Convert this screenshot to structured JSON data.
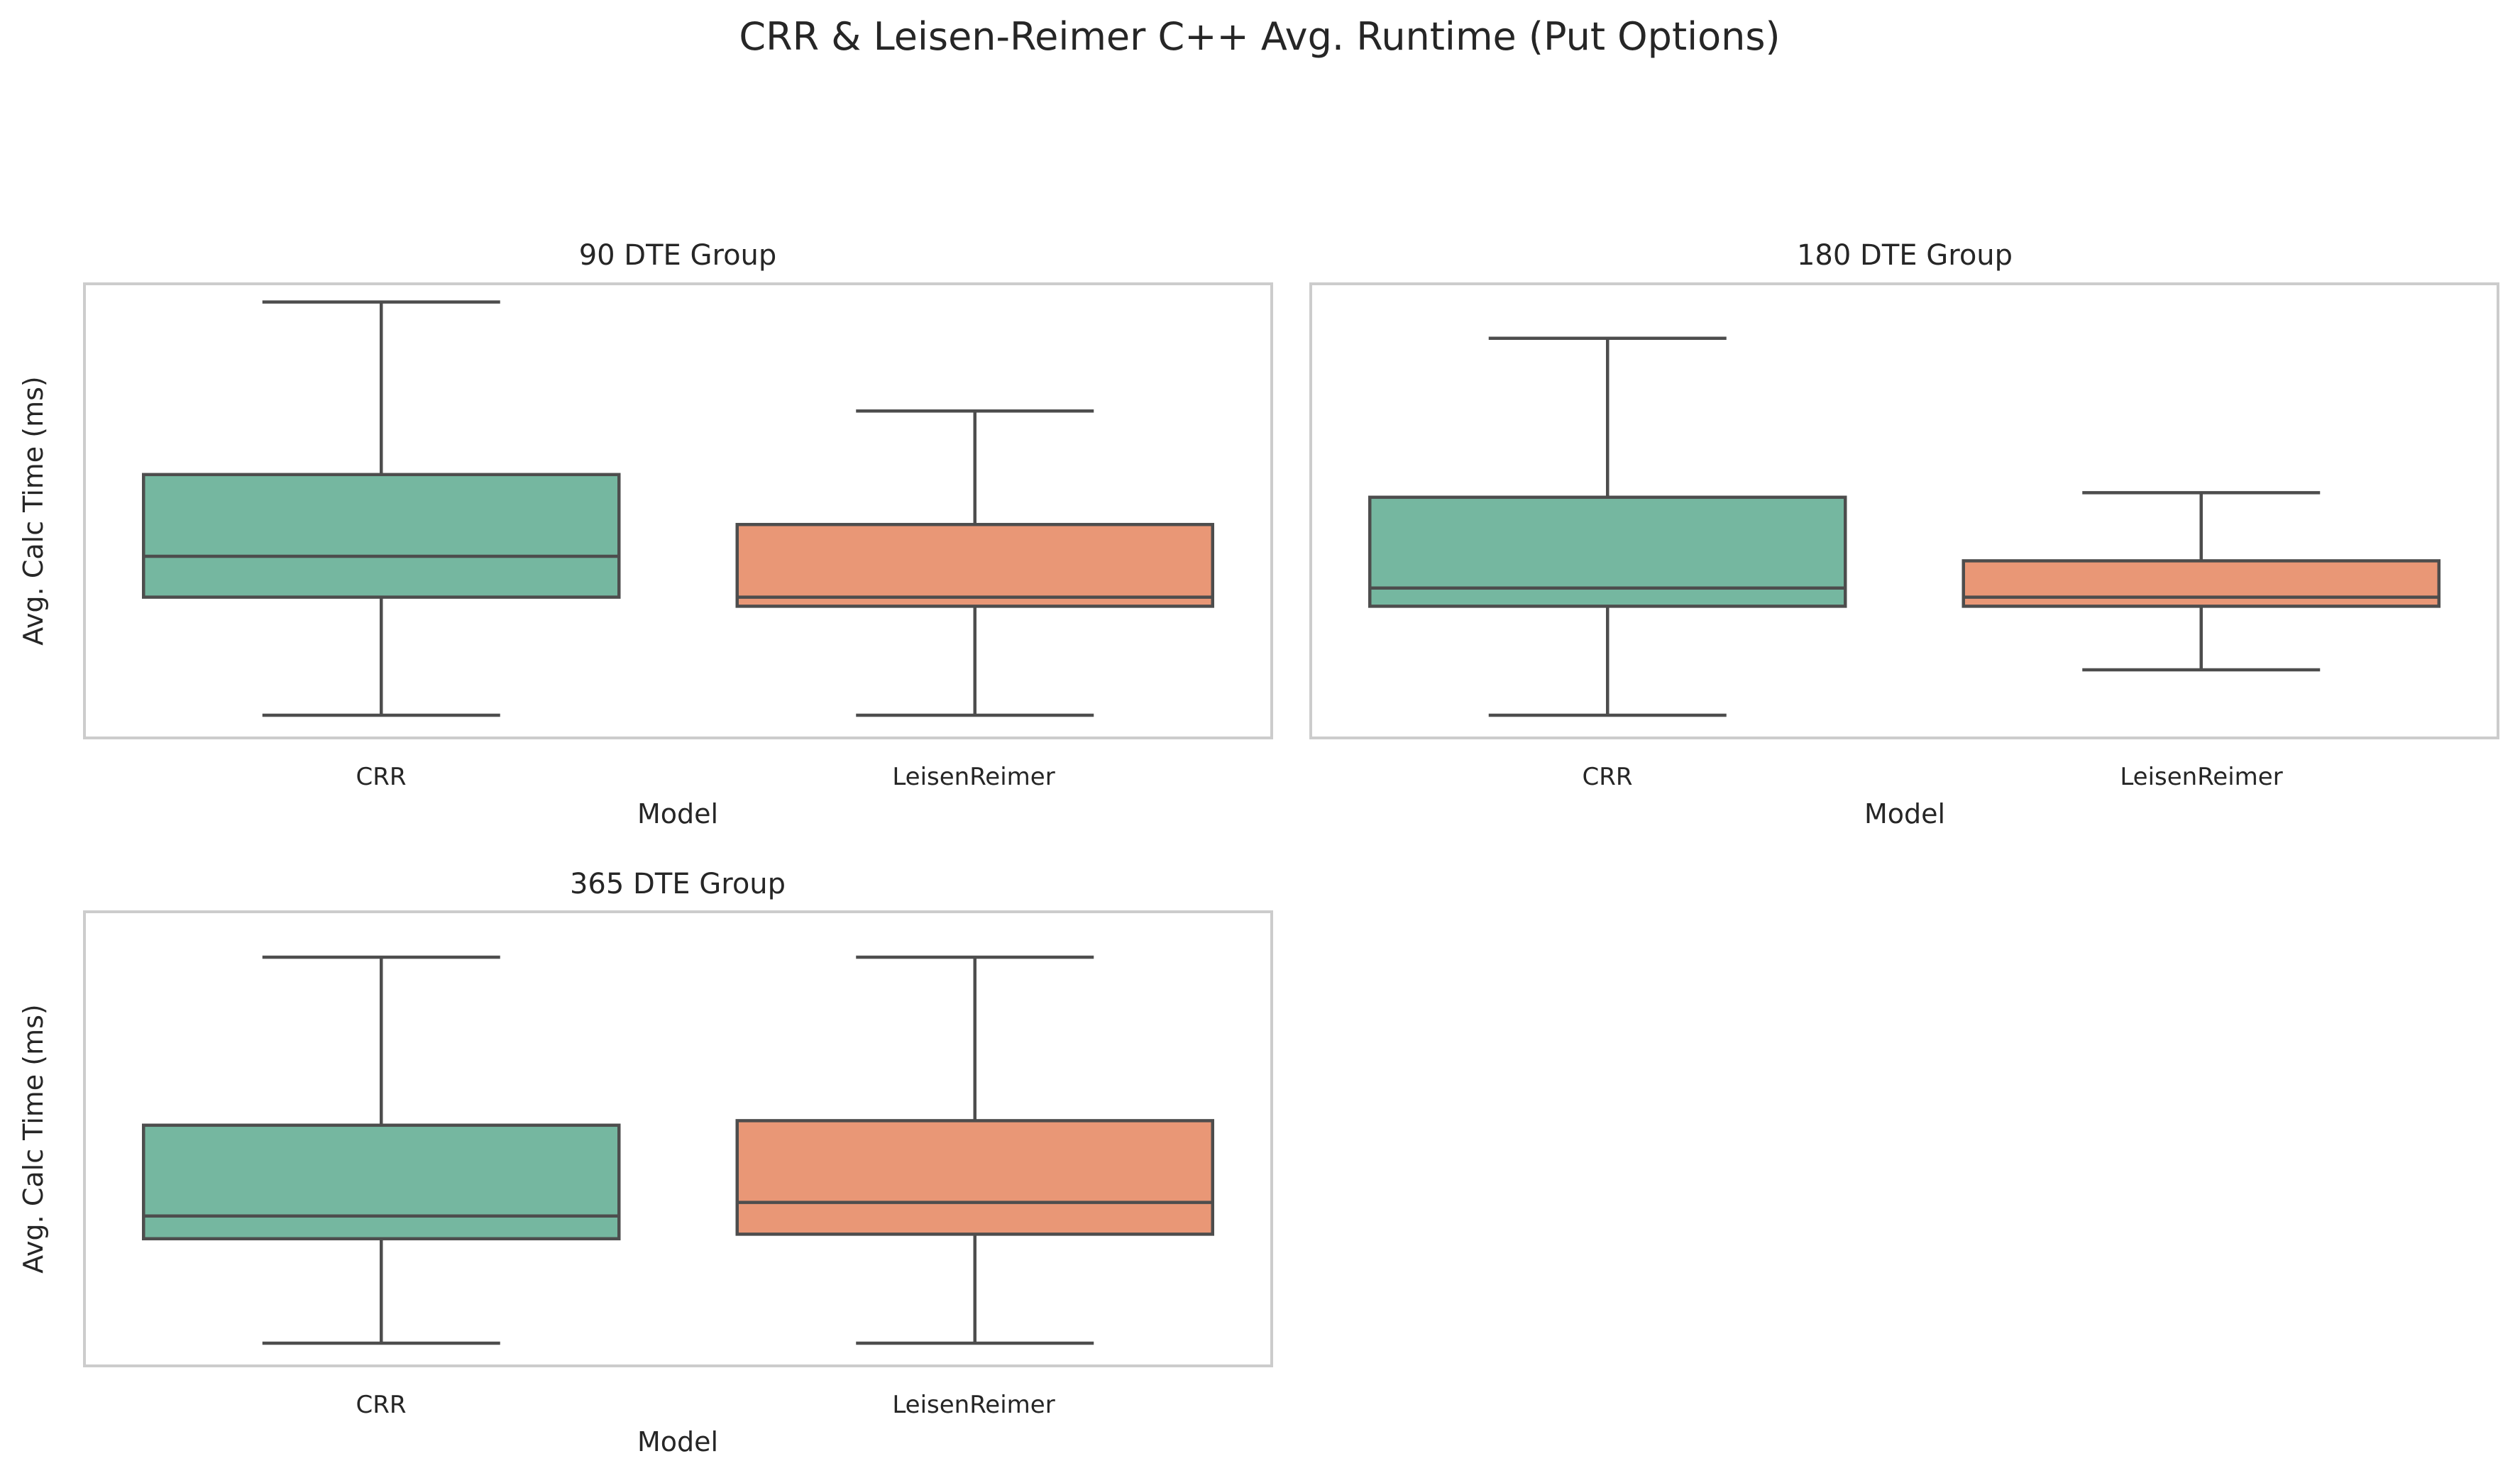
{
  "figure": {
    "title": "CRR & Leisen-Reimer C++ Avg. Runtime (Put Options)"
  },
  "colors": {
    "CRR": "#75b7a0",
    "LeisenReimer": "#e99776",
    "line": "#4d4d4d",
    "frame": "#cccccc"
  },
  "chart_data": [
    {
      "type": "box",
      "title": "90 DTE Group",
      "xlabel": "Model",
      "ylabel": "Avg. Calc Time (ms)",
      "categories": [
        "CRR",
        "LeisenReimer"
      ],
      "ylim": [
        0,
        1
      ],
      "y_ticks_shown": false,
      "grid": false,
      "boxes": [
        {
          "name": "CRR",
          "whisker_low": 0.05,
          "q1": 0.31,
          "median": 0.4,
          "q3": 0.58,
          "whisker_high": 0.96
        },
        {
          "name": "LeisenReimer",
          "whisker_low": 0.05,
          "q1": 0.29,
          "median": 0.31,
          "q3": 0.47,
          "whisker_high": 0.72
        }
      ]
    },
    {
      "type": "box",
      "title": "180 DTE Group",
      "xlabel": "Model",
      "ylabel": "",
      "categories": [
        "CRR",
        "LeisenReimer"
      ],
      "ylim": [
        0,
        1
      ],
      "y_ticks_shown": false,
      "grid": false,
      "boxes": [
        {
          "name": "CRR",
          "whisker_low": 0.05,
          "q1": 0.29,
          "median": 0.33,
          "q3": 0.53,
          "whisker_high": 0.88
        },
        {
          "name": "LeisenReimer",
          "whisker_low": 0.15,
          "q1": 0.29,
          "median": 0.31,
          "q3": 0.39,
          "whisker_high": 0.54
        }
      ]
    },
    {
      "type": "box",
      "title": "365 DTE Group",
      "xlabel": "Model",
      "ylabel": "Avg. Calc Time (ms)",
      "categories": [
        "CRR",
        "LeisenReimer"
      ],
      "ylim": [
        0,
        1
      ],
      "y_ticks_shown": false,
      "grid": false,
      "boxes": [
        {
          "name": "CRR",
          "whisker_low": 0.05,
          "q1": 0.28,
          "median": 0.33,
          "q3": 0.53,
          "whisker_high": 0.9
        },
        {
          "name": "LeisenReimer",
          "whisker_low": 0.05,
          "q1": 0.29,
          "median": 0.36,
          "q3": 0.54,
          "whisker_high": 0.9
        }
      ]
    }
  ]
}
